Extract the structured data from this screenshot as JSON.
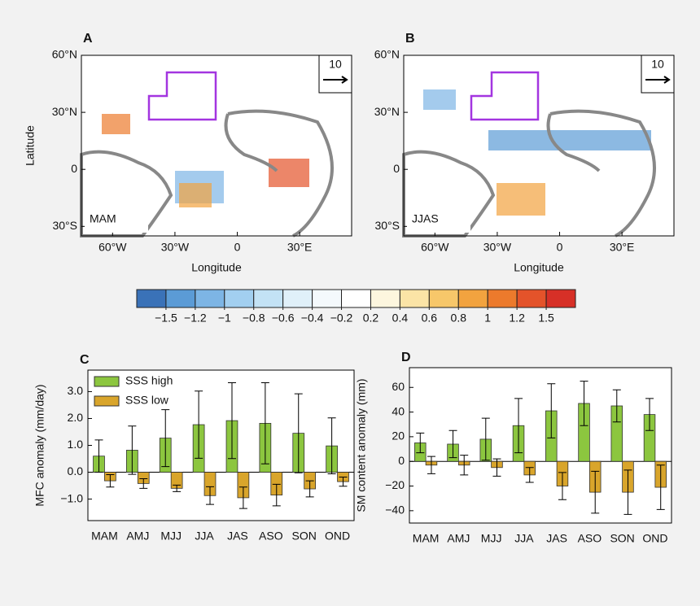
{
  "chart_data": [
    {
      "type": "map",
      "panel": "A",
      "season": "MAM",
      "vector_key": "10",
      "xlabel": "Longitude",
      "ylabel": "Latitude",
      "xlim": [
        -75,
        55
      ],
      "ylim": [
        -35,
        60
      ],
      "xticks": [
        {
          "value": -60,
          "label": "60°W"
        },
        {
          "value": -30,
          "label": "30°W"
        },
        0,
        {
          "value": 30,
          "label": "30°E"
        }
      ],
      "yticks": [
        {
          "value": -30,
          "label": "30°S"
        },
        0,
        {
          "value": 30,
          "label": "30°N"
        },
        {
          "value": 60,
          "label": "60°N"
        }
      ]
    },
    {
      "type": "map",
      "panel": "B",
      "season": "JJAS",
      "vector_key": "10",
      "xlabel": "Longitude",
      "xlim": [
        -75,
        55
      ],
      "ylim": [
        -35,
        60
      ],
      "xticks": [
        {
          "value": -60,
          "label": "60°W"
        },
        {
          "value": -30,
          "label": "30°W"
        },
        0,
        {
          "value": 30,
          "label": "30°E"
        }
      ],
      "yticks": [
        {
          "value": -30,
          "label": "30°S"
        },
        0,
        {
          "value": 30,
          "label": "30°N"
        },
        {
          "value": 60,
          "label": "60°N"
        }
      ]
    },
    {
      "type": "colorbar",
      "colors": [
        "#3a72b8",
        "#5b9bd6",
        "#7db5e5",
        "#a2cff0",
        "#c3e2f5",
        "#e0f0f9",
        "#f4f9fc",
        "#ffffff",
        "#fdf6de",
        "#fbe4a6",
        "#f7c76a",
        "#f2a33f",
        "#ec7a2c",
        "#e4532a",
        "#d73027"
      ],
      "ticks": [
        {
          "value": -1.5,
          "label": "−1.5"
        },
        {
          "value": -1.2,
          "label": "−1.2"
        },
        {
          "value": -1,
          "label": "−1"
        },
        {
          "value": -0.8,
          "label": "−0.8"
        },
        {
          "value": -0.6,
          "label": "−0.6"
        },
        {
          "value": -0.4,
          "label": "−0.4"
        },
        {
          "value": -0.2,
          "label": "−0.2"
        },
        0.2,
        0.4,
        0.6,
        0.8,
        1,
        1.2,
        1.5
      ]
    },
    {
      "type": "bar",
      "panel": "C",
      "ylabel": "MFC anomaly (mm/day)",
      "legend": "upper left",
      "categories": [
        "MAM",
        "AMJ",
        "MJJ",
        "JJA",
        "JAS",
        "ASO",
        "SON",
        "OND"
      ],
      "ylim": [
        -1.8,
        3.8
      ],
      "yticks": [
        {
          "value": -1,
          "label": "−1.0"
        },
        {
          "value": 0,
          "label": "0.0"
        },
        {
          "value": 1,
          "label": "1.0"
        },
        {
          "value": 2,
          "label": "2.0"
        },
        {
          "value": 3,
          "label": "3.0"
        }
      ],
      "series": [
        {
          "name": "SSS high",
          "color": "#8cc63f",
          "values": [
            0.6,
            0.82,
            1.27,
            1.77,
            1.92,
            1.82,
            1.45,
            0.98
          ],
          "errors": [
            0.6,
            0.9,
            1.06,
            1.25,
            1.41,
            1.51,
            1.47,
            1.04
          ]
        },
        {
          "name": "SSS low",
          "color": "#d9a52b",
          "values": [
            -0.32,
            -0.42,
            -0.6,
            -0.87,
            -0.95,
            -0.85,
            -0.62,
            -0.35
          ],
          "errors": [
            0.23,
            0.18,
            0.12,
            0.33,
            0.4,
            0.4,
            0.3,
            0.17
          ]
        }
      ]
    },
    {
      "type": "bar",
      "panel": "D",
      "ylabel": "SM content anomaly (mm)",
      "categories": [
        "MAM",
        "AMJ",
        "MJJ",
        "JJA",
        "JAS",
        "ASO",
        "SON",
        "OND"
      ],
      "ylim": [
        -50,
        76
      ],
      "yticks": [
        {
          "value": -40,
          "label": "−40"
        },
        {
          "value": -20,
          "label": "−20"
        },
        0,
        20,
        40,
        60
      ],
      "series": [
        {
          "color": "#8cc63f",
          "values": [
            15,
            14,
            18,
            29,
            41,
            47,
            45,
            38
          ],
          "errors": [
            8,
            11,
            17,
            22,
            22,
            18,
            13,
            13
          ]
        },
        {
          "color": "#d9a52b",
          "values": [
            -3,
            -3,
            -5,
            -11,
            -20,
            -25,
            -25,
            -21
          ],
          "errors": [
            7,
            8,
            7,
            6,
            11,
            17,
            18,
            18
          ]
        }
      ]
    }
  ]
}
